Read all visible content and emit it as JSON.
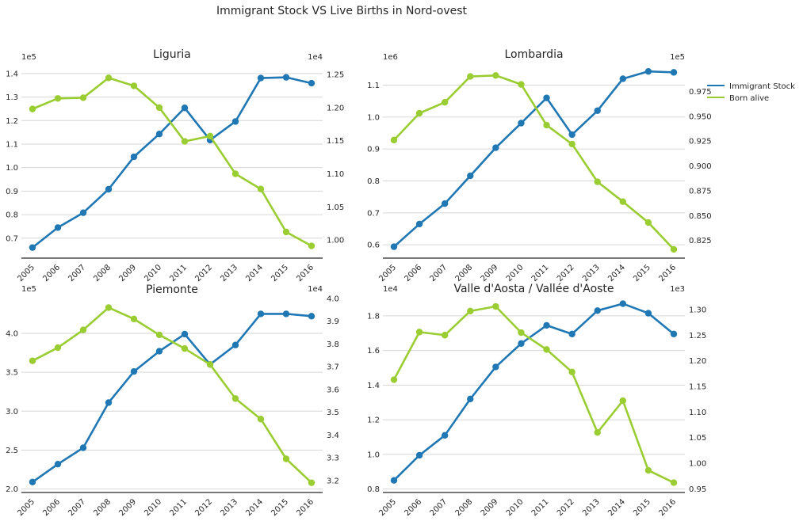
{
  "chart_data": {
    "title": "Immigrant Stock VS Live Births in Nord-ovest",
    "legend": {
      "placement": "right",
      "entries": [
        {
          "label": "Immigrant Stock",
          "color": "#1f77b4"
        },
        {
          "label": "Born alive",
          "color": "#9acd32"
        }
      ]
    },
    "panels": [
      {
        "type": "line",
        "title": "Liguria",
        "categories": [
          "2005",
          "2006",
          "2007",
          "2008",
          "2009",
          "2010",
          "2011",
          "2012",
          "2013",
          "2014",
          "2015",
          "2016"
        ],
        "left_axis": {
          "offset_label": "1e5",
          "ticks": [
            "0.7",
            "0.8",
            "0.9",
            "1.0",
            "1.1",
            "1.2",
            "1.3",
            "1.4"
          ],
          "tick_values": [
            0.7,
            0.8,
            0.9,
            1.0,
            1.1,
            1.2,
            1.3,
            1.4
          ],
          "ylim": [
            0.615,
            1.43
          ]
        },
        "right_axis": {
          "offset_label": "1e4",
          "ticks": [
            "1.00",
            "1.05",
            "1.10",
            "1.15",
            "1.20",
            "1.25"
          ],
          "tick_values": [
            1.0,
            1.05,
            1.1,
            1.15,
            1.2,
            1.25
          ],
          "ylim": [
            0.9725,
            1.2622
          ]
        },
        "series": [
          {
            "name": "Immigrant Stock",
            "axis": "left",
            "color": "#1f77b4",
            "values": [
              0.66,
              0.745,
              0.808,
              0.908,
              1.046,
              1.143,
              1.254,
              1.117,
              1.196,
              1.381,
              1.384,
              1.359
            ]
          },
          {
            "name": "Born alive",
            "axis": "right",
            "color": "#9acd32",
            "values": [
              1.198,
              1.214,
              1.215,
              1.245,
              1.233,
              1.2,
              1.149,
              1.157,
              1.1,
              1.077,
              1.012,
              0.991
            ]
          }
        ],
        "grid": true
      },
      {
        "type": "line",
        "title": "Lombardia",
        "categories": [
          "2005",
          "2006",
          "2007",
          "2008",
          "2009",
          "2010",
          "2011",
          "2012",
          "2013",
          "2014",
          "2015",
          "2016"
        ],
        "left_axis": {
          "offset_label": "1e6",
          "ticks": [
            "0.6",
            "0.7",
            "0.8",
            "0.9",
            "1.0",
            "1.1"
          ],
          "tick_values": [
            0.6,
            0.7,
            0.8,
            0.9,
            1.0,
            1.1
          ],
          "ylim": [
            0.5583,
            1.1583
          ]
        },
        "right_axis": {
          "offset_label": "1e5",
          "ticks": [
            "0.825",
            "0.850",
            "0.875",
            "0.900",
            "0.925",
            "0.950",
            "0.975"
          ],
          "tick_values": [
            0.825,
            0.85,
            0.875,
            0.9,
            0.925,
            0.95,
            0.975
          ],
          "ylim": [
            0.8072,
            1.0
          ]
        },
        "series": [
          {
            "name": "Immigrant Stock",
            "axis": "left",
            "color": "#1f77b4",
            "values": [
              0.594,
              0.665,
              0.729,
              0.816,
              0.904,
              0.981,
              1.06,
              0.945,
              1.02,
              1.12,
              1.143,
              1.14
            ]
          },
          {
            "name": "Born alive",
            "axis": "right",
            "color": "#9acd32",
            "values": [
              0.926,
              0.953,
              0.964,
              0.99,
              0.991,
              0.982,
              0.941,
              0.922,
              0.884,
              0.864,
              0.843,
              0.816
            ]
          }
        ],
        "grid": true
      },
      {
        "type": "line",
        "title": "Piemonte",
        "categories": [
          "2005",
          "2006",
          "2007",
          "2008",
          "2009",
          "2010",
          "2011",
          "2012",
          "2013",
          "2014",
          "2015",
          "2016"
        ],
        "left_axis": {
          "offset_label": "1e5",
          "ticks": [
            "2.0",
            "2.5",
            "3.0",
            "3.5",
            "4.0"
          ],
          "tick_values": [
            2.0,
            2.5,
            3.0,
            3.5,
            4.0
          ],
          "ylim": [
            1.9555,
            4.4472
          ]
        },
        "right_axis": {
          "offset_label": "1e4",
          "ticks": [
            "3.2",
            "3.3",
            "3.4",
            "3.5",
            "3.6",
            "3.7",
            "3.8",
            "3.9",
            "4.0"
          ],
          "tick_values": [
            3.2,
            3.3,
            3.4,
            3.5,
            3.6,
            3.7,
            3.8,
            3.9,
            4.0
          ],
          "ylim": [
            3.147,
            4.0
          ]
        },
        "series": [
          {
            "name": "Immigrant Stock",
            "axis": "left",
            "color": "#1f77b4",
            "values": [
              2.09,
              2.32,
              2.53,
              3.11,
              3.51,
              3.77,
              3.99,
              3.6,
              3.85,
              4.25,
              4.25,
              4.22
            ]
          },
          {
            "name": "Born alive",
            "axis": "right",
            "color": "#9acd32",
            "values": [
              3.726,
              3.784,
              3.862,
              3.96,
              3.91,
              3.84,
              3.78,
              3.71,
              3.56,
              3.47,
              3.295,
              3.19
            ]
          }
        ],
        "grid": true
      },
      {
        "type": "line",
        "title": "Valle d'Aosta / Vallée d'Aoste",
        "categories": [
          "2005",
          "2006",
          "2007",
          "2008",
          "2009",
          "2010",
          "2011",
          "2012",
          "2013",
          "2014",
          "2015",
          "2016"
        ],
        "left_axis": {
          "offset_label": "1e4",
          "ticks": [
            "0.8",
            "1.0",
            "1.2",
            "1.4",
            "1.6",
            "1.8"
          ],
          "tick_values": [
            0.8,
            1.0,
            1.2,
            1.4,
            1.6,
            1.8
          ],
          "ylim": [
            0.78,
            1.9
          ]
        },
        "right_axis": {
          "offset_label": "1e3",
          "ticks": [
            "0.95",
            "1.00",
            "1.05",
            "1.10",
            "1.15",
            "1.20",
            "1.25",
            "1.30"
          ],
          "tick_values": [
            0.95,
            1.0,
            1.05,
            1.1,
            1.15,
            1.2,
            1.25,
            1.3
          ],
          "ylim": [
            0.9428,
            1.3215
          ]
        },
        "series": [
          {
            "name": "Immigrant Stock",
            "axis": "left",
            "color": "#1f77b4",
            "values": [
              0.85,
              0.995,
              1.11,
              1.32,
              1.505,
              1.64,
              1.745,
              1.695,
              1.83,
              1.87,
              1.815,
              1.695
            ]
          },
          {
            "name": "Born alive",
            "axis": "right",
            "color": "#9acd32",
            "values": [
              1.163,
              1.256,
              1.25,
              1.297,
              1.306,
              1.255,
              1.222,
              1.178,
              1.06,
              1.122,
              0.986,
              0.962
            ]
          }
        ],
        "grid": true
      }
    ]
  }
}
